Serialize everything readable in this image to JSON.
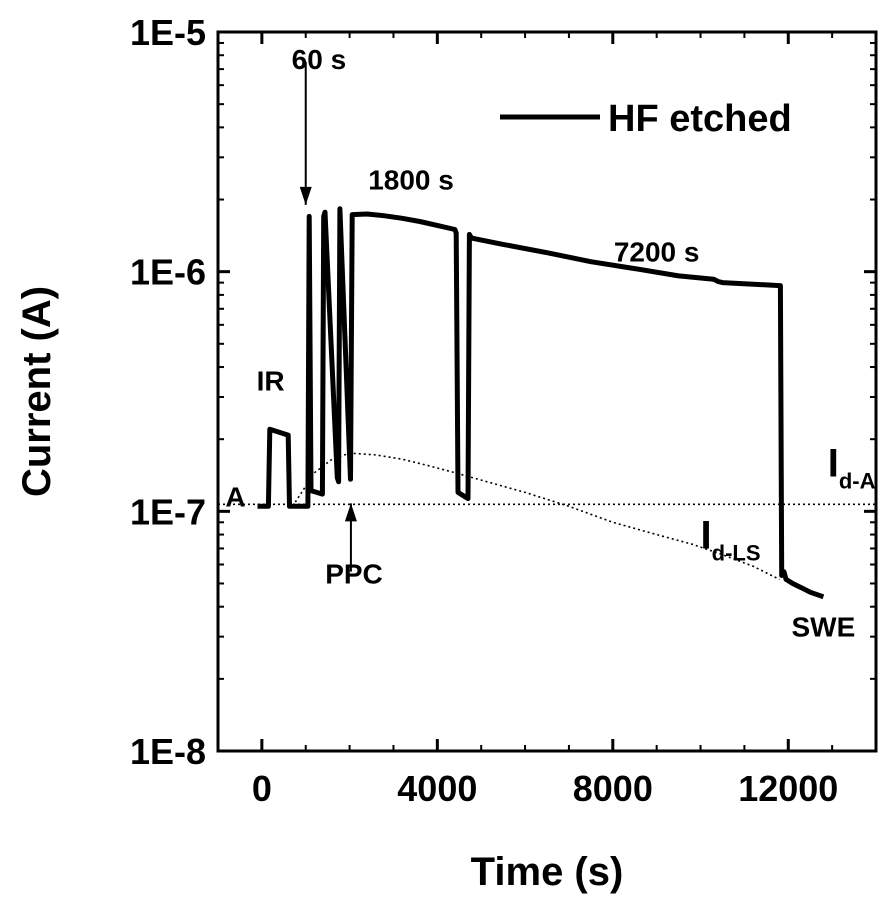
{
  "chart_data": {
    "type": "line",
    "xlabel": "Time (s)",
    "ylabel": "Current (A)",
    "xlim": [
      -1000,
      14000
    ],
    "ylim": [
      1e-08,
      1e-05
    ],
    "y_scale": "log",
    "grid": false,
    "legend_position": "top-right",
    "x_ticks": [
      0,
      4000,
      8000,
      12000
    ],
    "x_tick_labels": [
      "0",
      "4000",
      "8000",
      "12000"
    ],
    "y_ticks": [
      1e-08,
      1e-07,
      1e-06,
      1e-05
    ],
    "y_tick_labels": [
      "1E-8",
      "1E-7",
      "1E-6",
      "1E-5"
    ],
    "series": [
      {
        "name": "HF etched",
        "style": "solid",
        "color": "#000000",
        "x": [
          -100,
          150,
          180,
          600,
          630,
          700,
          1050,
          1080,
          1120,
          1380,
          1410,
          1440,
          1720,
          1750,
          1780,
          2020,
          2060,
          2400,
          2800,
          3200,
          3600,
          4000,
          4400,
          4430,
          4470,
          4700,
          4730,
          4780,
          5500,
          6500,
          7500,
          8500,
          9500,
          10300,
          10400,
          10500,
          11800,
          11820,
          11850,
          11900,
          11950,
          12100,
          12300,
          12500,
          12800
        ],
        "y": [
          1.05e-07,
          1.05e-07,
          2.2e-07,
          2.08e-07,
          1.05e-07,
          1.05e-07,
          1.05e-07,
          1.7e-06,
          1.22e-07,
          1.18e-07,
          1.7e-06,
          1.77e-06,
          1.38e-07,
          1.33e-07,
          1.83e-06,
          1.36e-07,
          1.73e-06,
          1.74e-06,
          1.71e-06,
          1.67e-06,
          1.62e-06,
          1.56e-06,
          1.5e-06,
          1.45e-06,
          1.2e-07,
          1.13e-07,
          1.43e-06,
          1.38e-06,
          1.3e-06,
          1.2e-06,
          1.1e-06,
          1.03e-06,
          9.6e-07,
          9.3e-07,
          9.1e-07,
          9e-07,
          8.75e-07,
          8.75e-07,
          5.4e-08,
          5.6e-08,
          5.2e-08,
          5e-08,
          4.8e-08,
          4.6e-08,
          4.4e-08
        ]
      },
      {
        "style": "dotted",
        "color": "#000000",
        "x": [
          700,
          1200,
          1600,
          2000,
          2600,
          3200,
          3800,
          4400,
          5000,
          6000,
          7000,
          8000,
          9000,
          9800,
          10500,
          11200,
          11800
        ],
        "y": [
          1.05e-07,
          1.45e-07,
          1.65e-07,
          1.75e-07,
          1.72e-07,
          1.65e-07,
          1.55e-07,
          1.45e-07,
          1.35e-07,
          1.2e-07,
          1.05e-07,
          9e-08,
          8e-08,
          7.3e-08,
          6.6e-08,
          5.9e-08,
          5.2e-08
        ]
      },
      {
        "style": "dotted",
        "color": "#000000",
        "x": [
          -1000,
          14000
        ],
        "y": [
          1.07e-07,
          1.07e-07
        ]
      }
    ],
    "legend": {
      "label": "HF etched"
    },
    "annotations": [
      {
        "text": "A",
        "x": -600,
        "y": 1.05e-07
      },
      {
        "text": "IR",
        "x": 200,
        "y": 3.2e-07
      },
      {
        "text": "60 s",
        "x": 1300,
        "y": 7e-06
      },
      {
        "text": "1800 s",
        "x": 3400,
        "y": 2.2e-06
      },
      {
        "text": "7200 s",
        "x": 9000,
        "y": 1.1e-06
      },
      {
        "text": "PPC",
        "x": 2100,
        "y": 5e-08
      },
      {
        "text": "SWE",
        "x": 12800,
        "y": 3e-08
      },
      {
        "text": "I",
        "sub": "d-A",
        "x": 12900,
        "y": 1.4e-07
      },
      {
        "text": "I",
        "sub": "d-LS",
        "x": 10000,
        "y": 7e-08
      }
    ],
    "arrows": [
      {
        "from": [
          1000,
          7.5e-06
        ],
        "to": [
          1000,
          1.9e-06
        ]
      },
      {
        "from": [
          2030,
          5.6e-08
        ],
        "to": [
          2030,
          1.08e-07
        ]
      }
    ]
  }
}
